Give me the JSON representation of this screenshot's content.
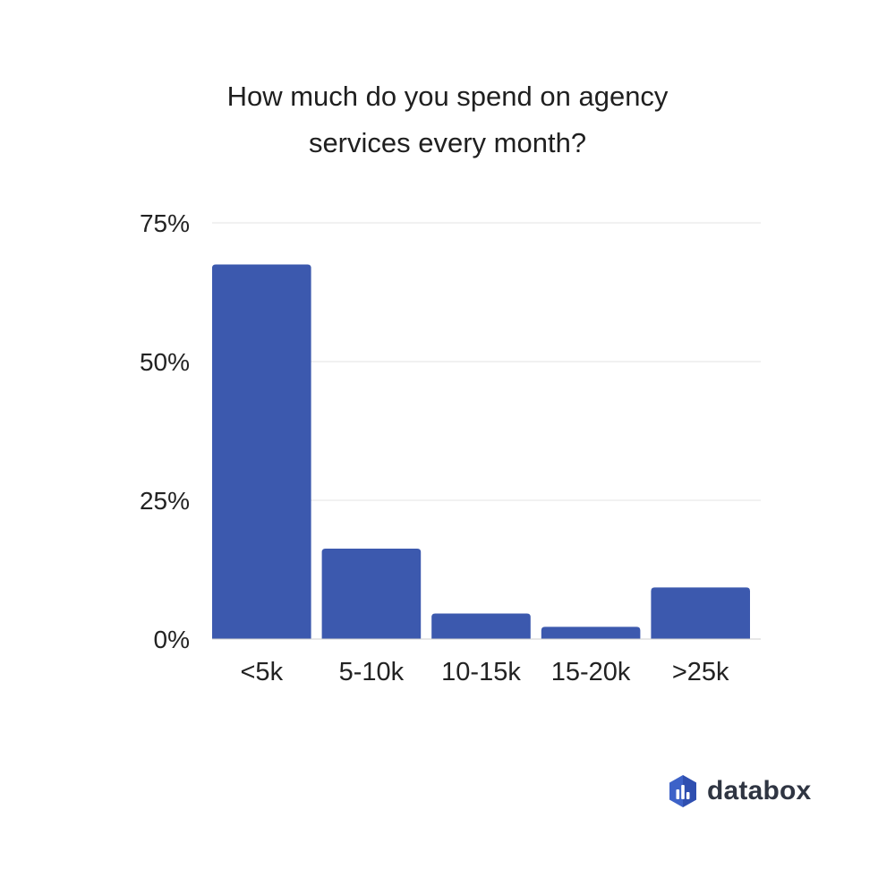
{
  "chart_data": {
    "type": "bar",
    "title_lines": [
      "How much do you spend on agency",
      "services every month?"
    ],
    "categories": [
      "<5k",
      "5-10k",
      "10-15k",
      "15-20k",
      ">25k"
    ],
    "values": [
      67.5,
      16.3,
      4.6,
      2.2,
      9.3
    ],
    "ylim": [
      0,
      75
    ],
    "yticks": [
      0,
      25,
      50,
      75
    ],
    "ytick_labels": [
      "0%",
      "25%",
      "50%",
      "75%"
    ],
    "grid": true,
    "bar_color": "#3c59ae",
    "xlabel": "",
    "ylabel": ""
  },
  "brand": {
    "name": "databox",
    "icon": "databox-logo-icon",
    "icon_color": "#3d62c8"
  }
}
